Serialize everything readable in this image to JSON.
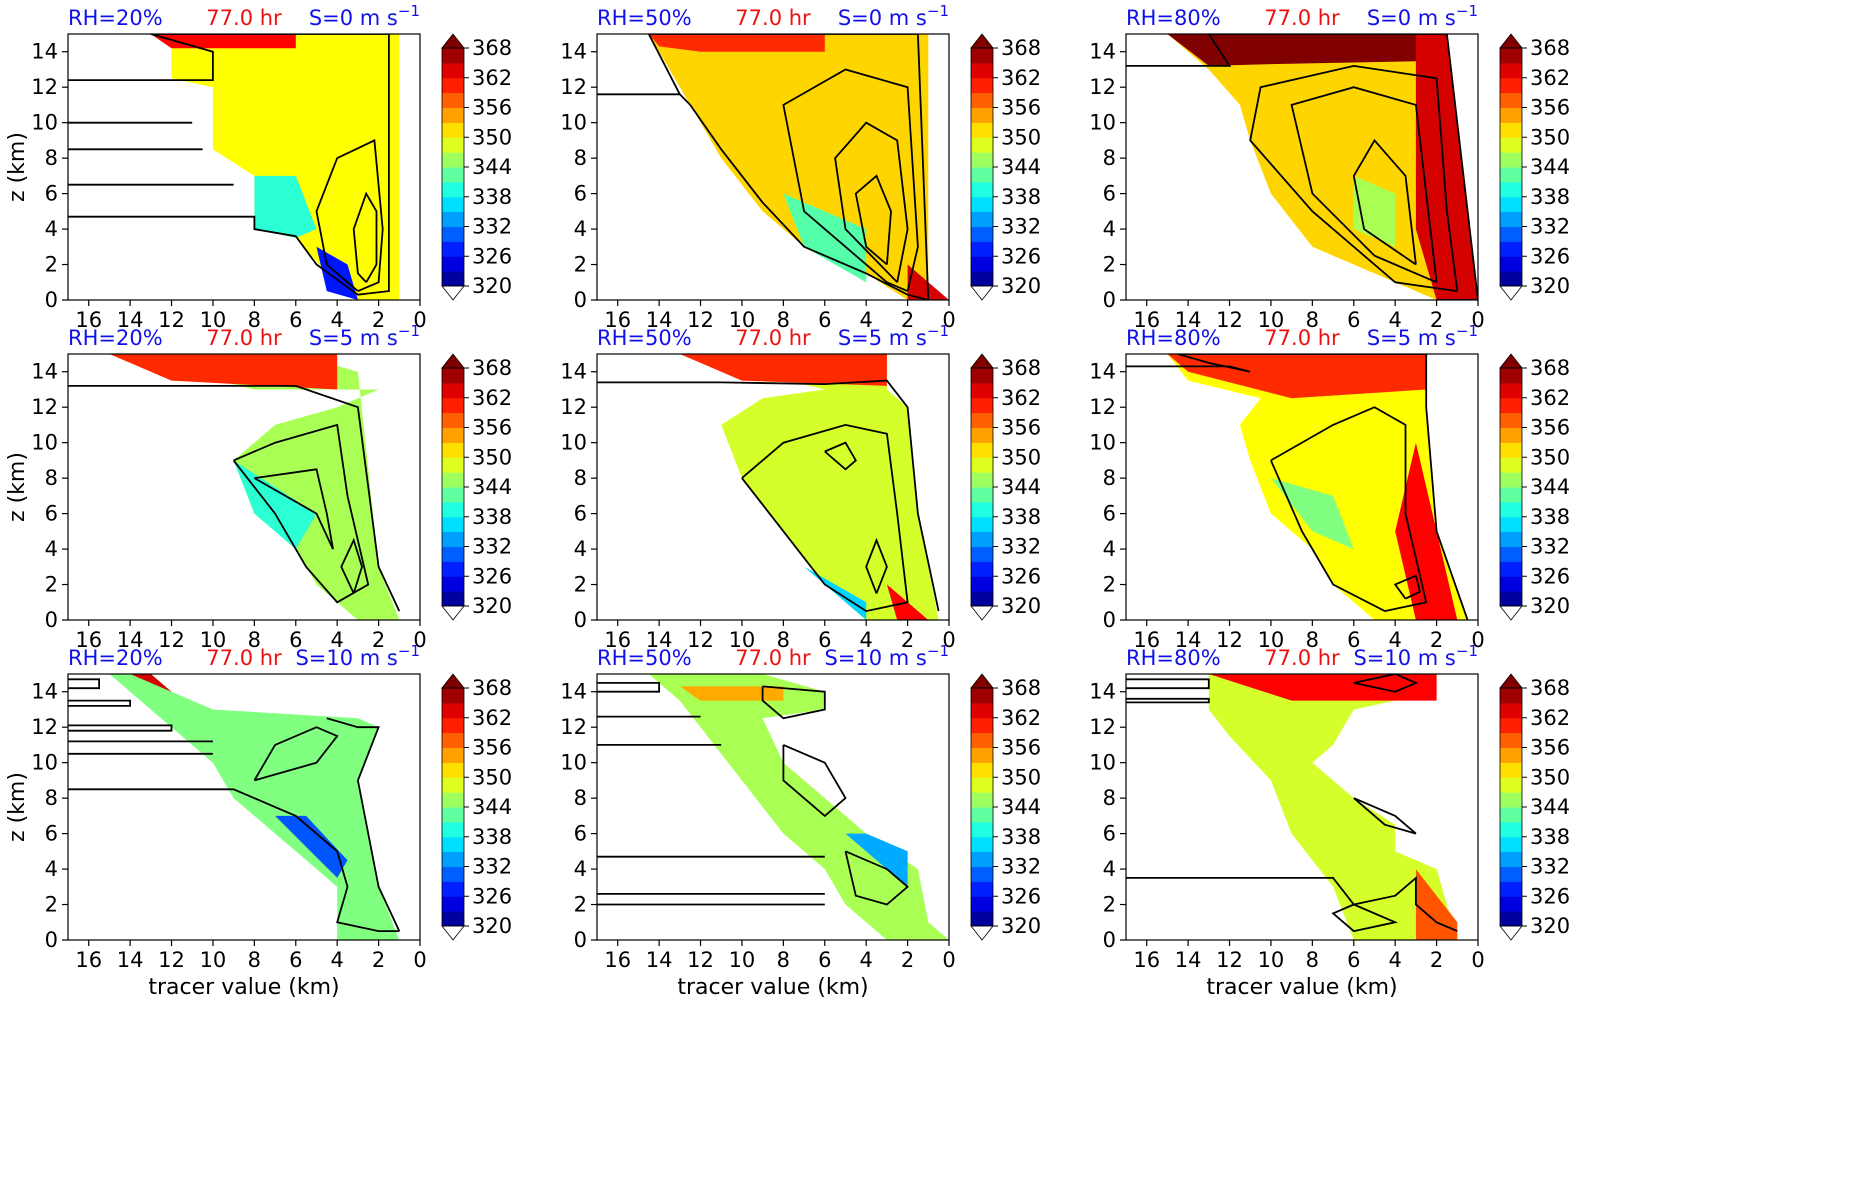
{
  "figure": {
    "y_axis_label": "z (km)",
    "x_axis_label": "tracer value (km)",
    "time_label": "77.0 hr",
    "colorbar_ticks": [
      "368",
      "362",
      "356",
      "350",
      "344",
      "338",
      "332",
      "326",
      "320"
    ]
  },
  "colors": {
    "rh_title": "#1010ee",
    "time_title": "#ee1010",
    "shear_title": "#1010ee",
    "contour": "#000000"
  },
  "chart_data": {
    "type": "heatmap",
    "description_free": true,
    "x_ticks": [
      16,
      14,
      12,
      10,
      8,
      6,
      4,
      2,
      0
    ],
    "y_ticks": [
      0,
      2,
      4,
      6,
      8,
      10,
      12,
      14
    ],
    "xlim": [
      17,
      0
    ],
    "ylim": [
      0,
      15
    ],
    "colorbar": {
      "min": 320,
      "max": 368,
      "step": 3,
      "ticks": [
        320,
        326,
        332,
        338,
        344,
        350,
        356,
        362,
        368
      ],
      "extend": "both",
      "colormap": "jet"
    },
    "panels": [
      {
        "rh": "RH=20%",
        "time": "77.0 hr",
        "shear": "S=0 m s",
        "shear_exp": "−1",
        "row": 0,
        "col": 0
      },
      {
        "rh": "RH=50%",
        "time": "77.0 hr",
        "shear": "S=0 m s",
        "shear_exp": "−1",
        "row": 0,
        "col": 1
      },
      {
        "rh": "RH=80%",
        "time": "77.0 hr",
        "shear": "S=0 m s",
        "shear_exp": "−1",
        "row": 0,
        "col": 2
      },
      {
        "rh": "RH=20%",
        "time": "77.0 hr",
        "shear": "S=5 m s",
        "shear_exp": "−1",
        "row": 1,
        "col": 0
      },
      {
        "rh": "RH=50%",
        "time": "77.0 hr",
        "shear": "S=5 m s",
        "shear_exp": "−1",
        "row": 1,
        "col": 1
      },
      {
        "rh": "RH=80%",
        "time": "77.0 hr",
        "shear": "S=5 m s",
        "shear_exp": "−1",
        "row": 1,
        "col": 2
      },
      {
        "rh": "RH=20%",
        "time": "77.0 hr",
        "shear": "S=10 m s",
        "shear_exp": "−1",
        "row": 2,
        "col": 0
      },
      {
        "rh": "RH=50%",
        "time": "77.0 hr",
        "shear": "S=10 m s",
        "shear_exp": "−1",
        "row": 2,
        "col": 1
      },
      {
        "rh": "RH=80%",
        "time": "77.0 hr",
        "shear": "S=10 m s",
        "shear_exp": "−1",
        "row": 2,
        "col": 2
      }
    ]
  }
}
